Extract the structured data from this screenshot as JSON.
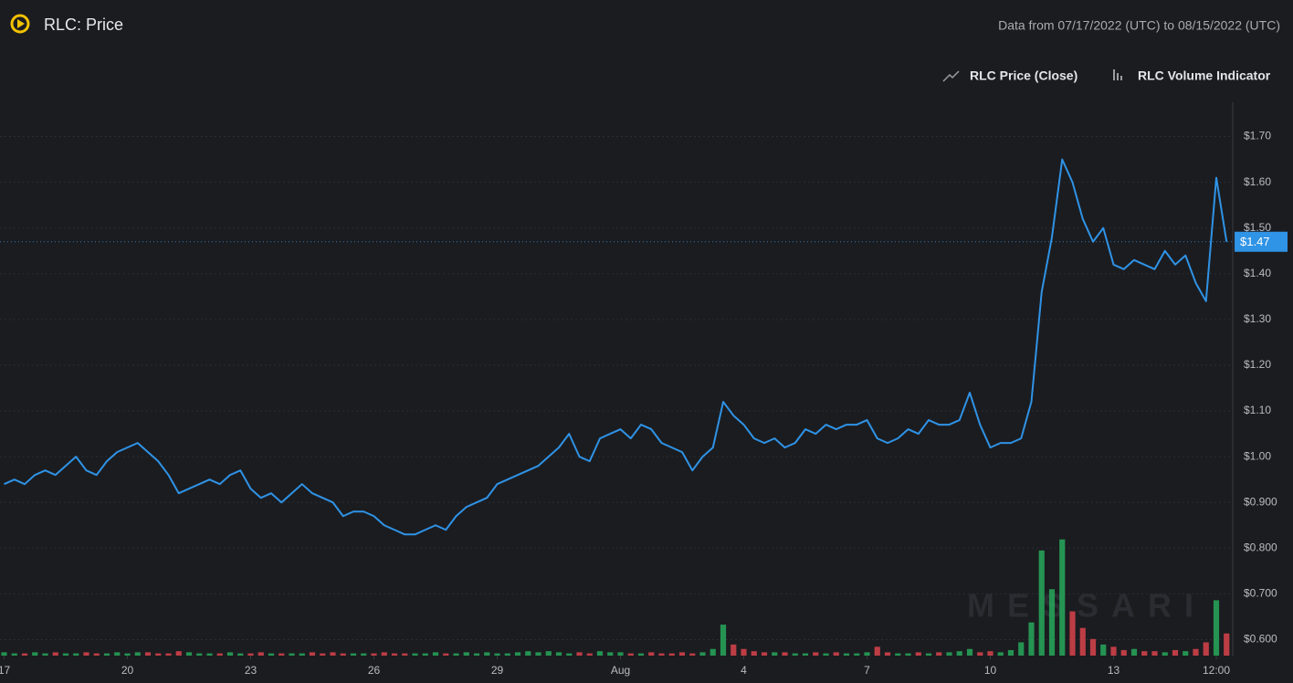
{
  "header": {
    "title": "RLC: Price",
    "range": "Data from 07/17/2022 (UTC) to 08/15/2022 (UTC)",
    "watermark": "MESSARI"
  },
  "chart_data": {
    "type": "line",
    "xlim": [
      -0.1,
      29.9
    ],
    "xticks": [
      {
        "value": 0,
        "label": "17"
      },
      {
        "value": 3,
        "label": "20"
      },
      {
        "value": 6,
        "label": "23"
      },
      {
        "value": 9,
        "label": "26"
      },
      {
        "value": 12,
        "label": "29"
      },
      {
        "value": 15,
        "label": "Aug"
      },
      {
        "value": 18,
        "label": "4"
      },
      {
        "value": 21,
        "label": "7"
      },
      {
        "value": 24,
        "label": "10"
      },
      {
        "value": 27,
        "label": "13"
      },
      {
        "value": 29.5,
        "label": "12:00"
      }
    ],
    "ylim": [
      0.565,
      1.775
    ],
    "yticks": [
      {
        "value": 0.6,
        "label": "$0.600"
      },
      {
        "value": 0.7,
        "label": "$0.700"
      },
      {
        "value": 0.8,
        "label": "$0.800"
      },
      {
        "value": 0.9,
        "label": "$0.900"
      },
      {
        "value": 1.0,
        "label": "$1.00"
      },
      {
        "value": 1.1,
        "label": "$1.10"
      },
      {
        "value": 1.2,
        "label": "$1.20"
      },
      {
        "value": 1.3,
        "label": "$1.30"
      },
      {
        "value": 1.4,
        "label": "$1.40"
      },
      {
        "value": 1.5,
        "label": "$1.50"
      },
      {
        "value": 1.6,
        "label": "$1.60"
      },
      {
        "value": 1.7,
        "label": "$1.70"
      }
    ],
    "y2lim": [
      0,
      500
    ],
    "grid": true,
    "last_price": {
      "value": 1.47,
      "label": "$1.47"
    },
    "x": [
      0,
      0.25,
      0.5,
      0.75,
      1,
      1.25,
      1.5,
      1.75,
      2,
      2.25,
      2.5,
      2.75,
      3,
      3.25,
      3.5,
      3.75,
      4,
      4.25,
      4.5,
      4.75,
      5,
      5.25,
      5.5,
      5.75,
      6,
      6.25,
      6.5,
      6.75,
      7,
      7.25,
      7.5,
      7.75,
      8,
      8.25,
      8.5,
      8.75,
      9,
      9.25,
      9.5,
      9.75,
      10,
      10.25,
      10.5,
      10.75,
      11,
      11.25,
      11.5,
      11.75,
      12,
      12.25,
      12.5,
      12.75,
      13,
      13.25,
      13.5,
      13.75,
      14,
      14.25,
      14.5,
      14.75,
      15,
      15.25,
      15.5,
      15.75,
      16,
      16.25,
      16.5,
      16.75,
      17,
      17.25,
      17.5,
      17.75,
      18,
      18.25,
      18.5,
      18.75,
      19,
      19.25,
      19.5,
      19.75,
      20,
      20.25,
      20.5,
      20.75,
      21,
      21.25,
      21.5,
      21.75,
      22,
      22.25,
      22.5,
      22.75,
      23,
      23.25,
      23.5,
      23.75,
      24,
      24.25,
      24.5,
      24.75,
      25,
      25.25,
      25.5,
      25.75,
      26,
      26.25,
      26.5,
      26.75,
      27,
      27.25,
      27.5,
      27.75,
      28,
      28.25,
      28.5,
      28.75,
      29,
      29.25,
      29.5,
      29.75
    ],
    "series": [
      {
        "name": "RLC Price (Close)",
        "color": "#2f93e6",
        "values": [
          0.94,
          0.95,
          0.94,
          0.96,
          0.97,
          0.96,
          0.98,
          1.0,
          0.97,
          0.96,
          0.99,
          1.01,
          1.02,
          1.03,
          1.01,
          0.99,
          0.96,
          0.92,
          0.93,
          0.94,
          0.95,
          0.94,
          0.96,
          0.97,
          0.93,
          0.91,
          0.92,
          0.9,
          0.92,
          0.94,
          0.92,
          0.91,
          0.9,
          0.87,
          0.88,
          0.88,
          0.87,
          0.85,
          0.84,
          0.83,
          0.83,
          0.84,
          0.85,
          0.84,
          0.87,
          0.89,
          0.9,
          0.91,
          0.94,
          0.95,
          0.96,
          0.97,
          0.98,
          1.0,
          1.02,
          1.05,
          1.0,
          0.99,
          1.04,
          1.05,
          1.06,
          1.04,
          1.07,
          1.06,
          1.03,
          1.02,
          1.01,
          0.97,
          1.0,
          1.02,
          1.12,
          1.09,
          1.07,
          1.04,
          1.03,
          1.04,
          1.02,
          1.03,
          1.06,
          1.05,
          1.07,
          1.06,
          1.07,
          1.07,
          1.08,
          1.04,
          1.03,
          1.04,
          1.06,
          1.05,
          1.08,
          1.07,
          1.07,
          1.08,
          1.14,
          1.07,
          1.02,
          1.03,
          1.03,
          1.04,
          1.12,
          1.36,
          1.48,
          1.65,
          1.6,
          1.52,
          1.47,
          1.5,
          1.42,
          1.41,
          1.43,
          1.42,
          1.41,
          1.45,
          1.42,
          1.44,
          1.38,
          1.34,
          1.61,
          1.47
        ]
      },
      {
        "name": "RLC Volume Indicator",
        "axis": "y2",
        "up_color": "#27a85c",
        "down_color": "#d9434c",
        "values": [
          3,
          2,
          2,
          3,
          2,
          3,
          2,
          2,
          3,
          2,
          2,
          3,
          2,
          3,
          3,
          2,
          2,
          4,
          3,
          2,
          2,
          2,
          3,
          2,
          2,
          3,
          2,
          2,
          2,
          2,
          3,
          2,
          3,
          2,
          2,
          2,
          2,
          3,
          2,
          2,
          2,
          2,
          3,
          2,
          2,
          3,
          2,
          3,
          2,
          2,
          3,
          4,
          3,
          4,
          3,
          2,
          3,
          2,
          4,
          3,
          3,
          2,
          2,
          3,
          2,
          2,
          3,
          2,
          3,
          6,
          28,
          10,
          6,
          4,
          3,
          3,
          3,
          2,
          2,
          3,
          2,
          3,
          2,
          2,
          3,
          8,
          3,
          2,
          2,
          3,
          2,
          3,
          3,
          4,
          6,
          3,
          4,
          3,
          5,
          12,
          30,
          95,
          60,
          105,
          40,
          25,
          15,
          10,
          8,
          5,
          6,
          4,
          4,
          3,
          5,
          4,
          6,
          12,
          50,
          20
        ]
      }
    ]
  }
}
